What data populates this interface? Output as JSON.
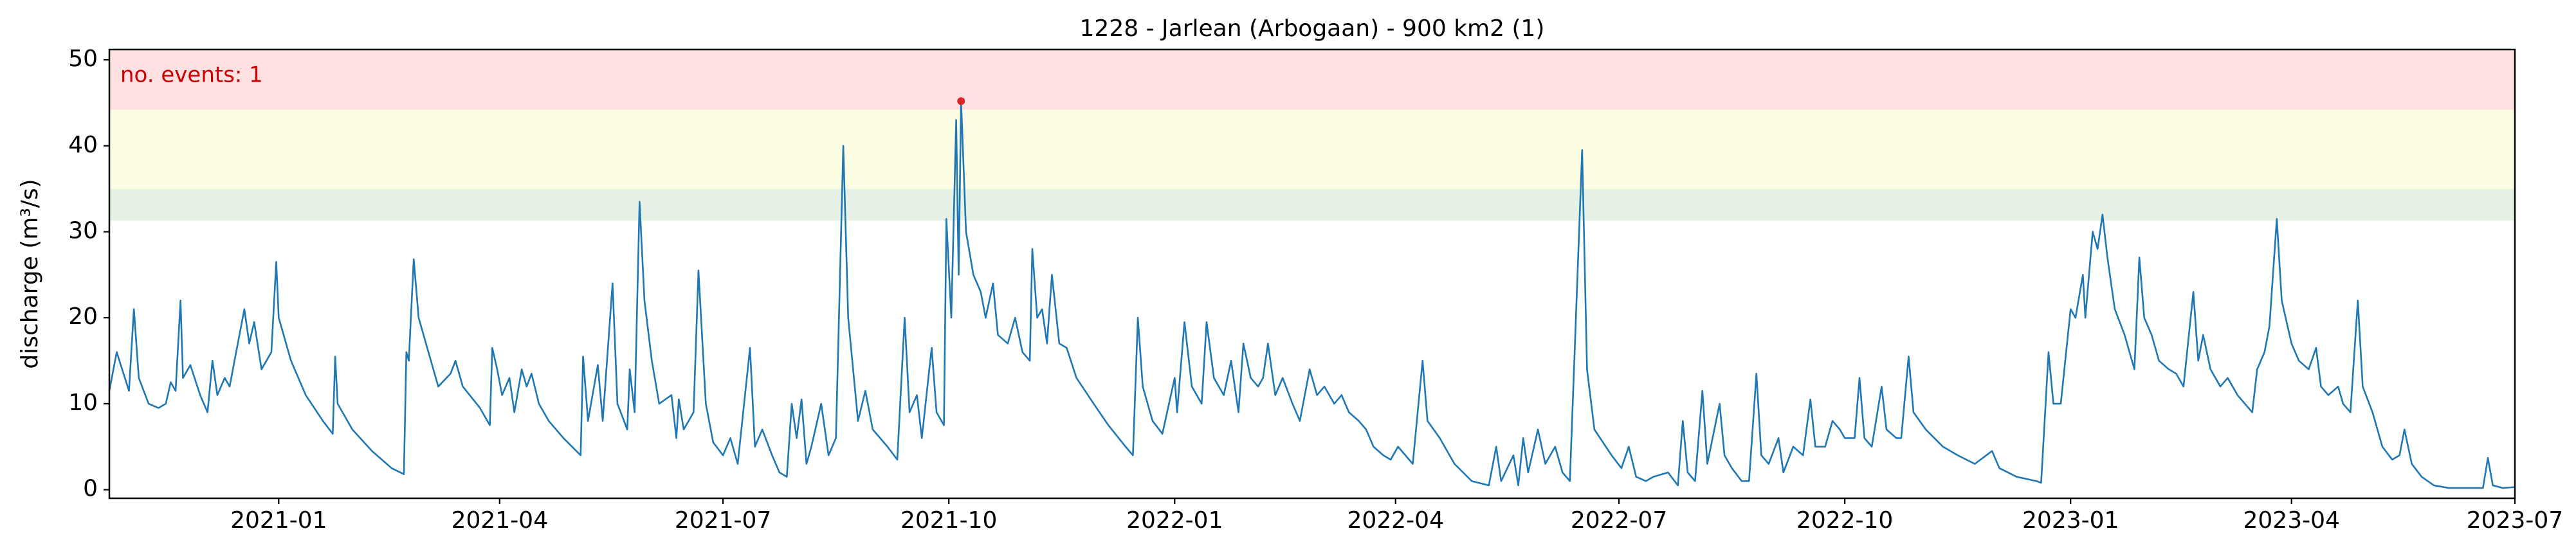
{
  "chart_data": {
    "type": "line",
    "title": "1228 - Jarlean (Arbogaan) - 900 km2 (1)",
    "ylabel": "discharge (m³/s)",
    "annotation": "no. events: 1",
    "annotation_color": "#cc0000",
    "color": "#1f77b4",
    "xlim": [
      "2020-10-24",
      "2023-07-01"
    ],
    "xticks": [
      "2021-01",
      "2021-04",
      "2021-07",
      "2021-10",
      "2022-01",
      "2022-04",
      "2022-07",
      "2022-10",
      "2023-01",
      "2023-04",
      "2023-07"
    ],
    "ylim": [
      -1,
      51.2
    ],
    "yticks": [
      0,
      10,
      20,
      30,
      40,
      50
    ],
    "bands": [
      {
        "from": 31.3,
        "to": 35,
        "color": "#e5f2e5"
      },
      {
        "from": 35,
        "to": 44.2,
        "color": "#fdfde3"
      },
      {
        "from": 44.2,
        "to": 51.2,
        "color": "#ffe1e1"
      }
    ],
    "events": [
      {
        "x": "2021-10-06",
        "value": 45.2,
        "color": "#d62728"
      }
    ],
    "x": [
      "2020-10-24",
      "2020-10-27",
      "2020-11-01",
      "2020-11-03",
      "2020-11-05",
      "2020-11-09",
      "2020-11-13",
      "2020-11-16",
      "2020-11-18",
      "2020-11-20",
      "2020-11-22",
      "2020-11-23",
      "2020-11-26",
      "2020-11-30",
      "2020-12-03",
      "2020-12-05",
      "2020-12-07",
      "2020-12-10",
      "2020-12-12",
      "2020-12-18",
      "2020-12-20",
      "2020-12-22",
      "2020-12-25",
      "2020-12-29",
      "2020-12-31",
      "2021-01-01",
      "2021-01-06",
      "2021-01-12",
      "2021-01-19",
      "2021-01-23",
      "2021-01-24",
      "2021-01-25",
      "2021-01-31",
      "2021-02-08",
      "2021-02-16",
      "2021-02-21",
      "2021-02-22",
      "2021-02-23",
      "2021-02-25",
      "2021-02-27",
      "2021-03-03",
      "2021-03-07",
      "2021-03-12",
      "2021-03-14",
      "2021-03-17",
      "2021-03-24",
      "2021-03-28",
      "2021-03-29",
      "2021-03-31",
      "2021-04-02",
      "2021-04-05",
      "2021-04-07",
      "2021-04-10",
      "2021-04-12",
      "2021-04-14",
      "2021-04-17",
      "2021-04-21",
      "2021-04-27",
      "2021-05-04",
      "2021-05-05",
      "2021-05-07",
      "2021-05-11",
      "2021-05-13",
      "2021-05-17",
      "2021-05-19",
      "2021-05-23",
      "2021-05-24",
      "2021-05-26",
      "2021-05-28",
      "2021-05-30",
      "2021-06-02",
      "2021-06-05",
      "2021-06-10",
      "2021-06-12",
      "2021-06-13",
      "2021-06-15",
      "2021-06-19",
      "2021-06-21",
      "2021-06-24",
      "2021-06-27",
      "2021-07-01",
      "2021-07-04",
      "2021-07-07",
      "2021-07-12",
      "2021-07-14",
      "2021-07-17",
      "2021-07-21",
      "2021-07-24",
      "2021-07-27",
      "2021-07-29",
      "2021-07-31",
      "2021-08-02",
      "2021-08-04",
      "2021-08-06",
      "2021-08-10",
      "2021-08-13",
      "2021-08-16",
      "2021-08-19",
      "2021-08-21",
      "2021-08-25",
      "2021-08-28",
      "2021-08-31",
      "2021-09-06",
      "2021-09-10",
      "2021-09-13",
      "2021-09-15",
      "2021-09-18",
      "2021-09-20",
      "2021-09-24",
      "2021-09-26",
      "2021-09-29",
      "2021-09-30",
      "2021-10-02",
      "2021-10-04",
      "2021-10-05",
      "2021-10-06",
      "2021-10-08",
      "2021-10-11",
      "2021-10-14",
      "2021-10-16",
      "2021-10-19",
      "2021-10-21",
      "2021-10-25",
      "2021-10-28",
      "2021-10-31",
      "2021-11-03",
      "2021-11-04",
      "2021-11-06",
      "2021-11-08",
      "2021-11-10",
      "2021-11-12",
      "2021-11-15",
      "2021-11-18",
      "2021-11-22",
      "2021-11-29",
      "2021-12-05",
      "2021-12-12",
      "2021-12-15",
      "2021-12-17",
      "2021-12-19",
      "2021-12-23",
      "2021-12-27",
      "2022-01-01",
      "2022-01-02",
      "2022-01-05",
      "2022-01-08",
      "2022-01-12",
      "2022-01-14",
      "2022-01-17",
      "2022-01-21",
      "2022-01-24",
      "2022-01-27",
      "2022-01-29",
      "2022-02-01",
      "2022-02-04",
      "2022-02-06",
      "2022-02-08",
      "2022-02-11",
      "2022-02-14",
      "2022-02-18",
      "2022-02-21",
      "2022-02-25",
      "2022-02-28",
      "2022-03-03",
      "2022-03-07",
      "2022-03-10",
      "2022-03-13",
      "2022-03-17",
      "2022-03-20",
      "2022-03-23",
      "2022-03-27",
      "2022-03-30",
      "2022-04-02",
      "2022-04-05",
      "2022-04-08",
      "2022-04-12",
      "2022-04-14",
      "2022-04-19",
      "2022-04-25",
      "2022-05-02",
      "2022-05-09",
      "2022-05-12",
      "2022-05-14",
      "2022-05-19",
      "2022-05-21",
      "2022-05-23",
      "2022-05-25",
      "2022-05-29",
      "2022-06-01",
      "2022-06-05",
      "2022-06-08",
      "2022-06-11",
      "2022-06-16",
      "2022-06-18",
      "2022-06-21",
      "2022-06-28",
      "2022-07-02",
      "2022-07-05",
      "2022-07-08",
      "2022-07-12",
      "2022-07-15",
      "2022-07-21",
      "2022-07-25",
      "2022-07-27",
      "2022-07-29",
      "2022-08-01",
      "2022-08-04",
      "2022-08-06",
      "2022-08-11",
      "2022-08-13",
      "2022-08-16",
      "2022-08-20",
      "2022-08-23",
      "2022-08-26",
      "2022-08-28",
      "2022-08-31",
      "2022-09-04",
      "2022-09-06",
      "2022-09-10",
      "2022-09-14",
      "2022-09-17",
      "2022-09-19",
      "2022-09-23",
      "2022-09-26",
      "2022-09-29",
      "2022-10-01",
      "2022-10-05",
      "2022-10-07",
      "2022-10-09",
      "2022-10-12",
      "2022-10-16",
      "2022-10-18",
      "2022-10-22",
      "2022-10-24",
      "2022-10-27",
      "2022-10-29",
      "2022-11-03",
      "2022-11-10",
      "2022-11-16",
      "2022-11-23",
      "2022-11-30",
      "2022-12-03",
      "2022-12-10",
      "2022-12-18",
      "2022-12-20",
      "2022-12-23",
      "2022-12-25",
      "2022-12-28",
      "2023-01-01",
      "2023-01-03",
      "2023-01-06",
      "2023-01-07",
      "2023-01-10",
      "2023-01-12",
      "2023-01-14",
      "2023-01-16",
      "2023-01-19",
      "2023-01-23",
      "2023-01-27",
      "2023-01-29",
      "2023-01-31",
      "2023-02-03",
      "2023-02-06",
      "2023-02-10",
      "2023-02-13",
      "2023-02-16",
      "2023-02-20",
      "2023-02-22",
      "2023-02-24",
      "2023-02-27",
      "2023-03-03",
      "2023-03-06",
      "2023-03-10",
      "2023-03-13",
      "2023-03-16",
      "2023-03-18",
      "2023-03-21",
      "2023-03-23",
      "2023-03-26",
      "2023-03-28",
      "2023-04-01",
      "2023-04-04",
      "2023-04-08",
      "2023-04-11",
      "2023-04-13",
      "2023-04-16",
      "2023-04-20",
      "2023-04-22",
      "2023-04-25",
      "2023-04-28",
      "2023-04-30",
      "2023-05-04",
      "2023-05-08",
      "2023-05-12",
      "2023-05-15",
      "2023-05-17",
      "2023-05-20",
      "2023-05-24",
      "2023-05-29",
      "2023-06-04",
      "2023-06-11",
      "2023-06-18",
      "2023-06-20",
      "2023-06-22",
      "2023-06-26",
      "2023-07-01"
    ],
    "values": [
      11.5,
      16,
      11.5,
      21,
      13,
      10,
      9.5,
      10,
      12.5,
      11.5,
      22,
      13,
      14.5,
      11,
      9,
      15,
      11,
      13,
      12,
      21,
      17,
      19.5,
      14,
      16,
      26.5,
      20,
      15,
      11,
      8,
      6.5,
      15.5,
      10,
      7,
      4.5,
      2.5,
      1.8,
      16,
      15,
      26.8,
      20,
      16,
      12,
      13.5,
      15,
      12,
      9.5,
      7.5,
      16.5,
      14,
      11,
      13,
      9,
      14,
      12,
      13.5,
      10,
      8,
      6,
      4,
      15.5,
      8,
      14.5,
      8,
      24,
      10,
      7,
      14,
      9,
      33.5,
      22,
      15,
      10,
      11,
      6,
      10.5,
      7,
      9,
      25.5,
      10,
      5.5,
      4,
      6,
      3,
      16.5,
      5,
      7,
      4,
      2,
      1.5,
      10,
      6,
      10.5,
      3,
      5,
      10,
      4,
      6,
      40,
      20,
      8,
      11.5,
      7,
      5,
      3.5,
      20,
      9,
      11,
      6,
      16.5,
      9,
      7.5,
      31.5,
      20,
      43,
      25,
      45.2,
      30,
      25,
      23,
      20,
      24,
      18,
      17,
      20,
      16,
      15,
      28,
      20,
      21,
      17,
      25,
      17,
      16.5,
      13,
      10,
      7.5,
      5,
      4,
      20,
      12,
      8,
      6.5,
      13,
      9,
      19.5,
      12,
      10,
      19.5,
      13,
      11,
      15,
      9,
      17,
      13,
      12,
      13,
      17,
      11,
      13,
      10,
      8,
      14,
      11,
      12,
      10,
      11,
      9,
      8,
      7,
      5,
      4,
      3.5,
      5,
      4,
      3,
      15,
      8,
      6,
      3,
      1,
      0.5,
      5,
      1,
      4,
      0.5,
      6,
      2,
      7,
      3,
      5,
      2,
      1,
      39.5,
      14,
      7,
      4,
      2.5,
      5,
      1.5,
      1,
      1.5,
      2,
      0.5,
      8,
      2,
      1,
      11.5,
      3,
      10,
      4,
      2.5,
      1,
      1,
      13.5,
      4,
      3,
      6,
      2,
      5,
      4,
      10.5,
      5,
      5,
      8,
      7,
      6,
      6,
      13,
      6,
      5,
      12,
      7,
      6,
      6,
      15.5,
      9,
      7,
      5,
      4,
      3,
      4.5,
      2.5,
      1.5,
      1,
      0.8,
      16,
      10,
      10,
      21,
      20,
      25,
      20,
      30,
      28,
      32,
      27,
      21,
      18,
      14,
      27,
      20,
      18,
      15,
      14,
      13.5,
      12,
      23,
      15,
      18,
      14,
      12,
      13,
      11,
      10,
      9,
      14,
      16,
      19,
      31.5,
      22,
      17,
      15,
      14,
      16.5,
      12,
      11,
      12,
      10,
      9,
      22,
      12,
      9,
      5,
      3.5,
      4,
      7,
      3,
      1.5,
      0.5,
      0.2,
      0.2,
      0.2,
      3.7,
      0.5,
      0.2,
      0.3
    ]
  }
}
